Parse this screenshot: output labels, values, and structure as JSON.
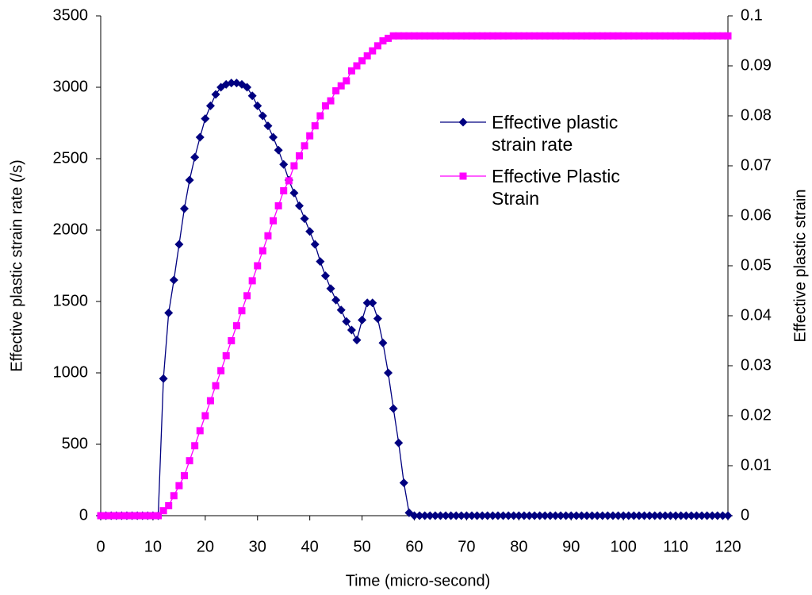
{
  "chart_data": {
    "type": "line",
    "x_label": "Time (micro-second)",
    "y_label": "Effective plastic strain rate (/s)",
    "y2_label": "Effective plastic strain",
    "x": [
      0,
      1,
      2,
      3,
      4,
      5,
      6,
      7,
      8,
      9,
      10,
      11,
      12,
      13,
      14,
      15,
      16,
      17,
      18,
      19,
      20,
      21,
      22,
      23,
      24,
      25,
      26,
      27,
      28,
      29,
      30,
      31,
      32,
      33,
      34,
      35,
      36,
      37,
      38,
      39,
      40,
      41,
      42,
      43,
      44,
      45,
      46,
      47,
      48,
      49,
      50,
      51,
      52,
      53,
      54,
      55,
      56,
      57,
      58,
      59,
      60,
      61,
      62,
      63,
      64,
      65,
      66,
      67,
      68,
      69,
      70,
      71,
      72,
      73,
      74,
      75,
      76,
      77,
      78,
      79,
      80,
      81,
      82,
      83,
      84,
      85,
      86,
      87,
      88,
      89,
      90,
      91,
      92,
      93,
      94,
      95,
      96,
      97,
      98,
      99,
      100,
      101,
      102,
      103,
      104,
      105,
      106,
      107,
      108,
      109,
      110,
      111,
      112,
      113,
      114,
      115,
      116,
      117,
      118,
      119,
      120
    ],
    "series": [
      {
        "name": "Effective plastic strain rate",
        "color": "#000080",
        "marker": "diamond",
        "values": [
          0,
          0,
          0,
          0,
          0,
          0,
          0,
          0,
          0,
          0,
          0,
          0,
          960,
          1420,
          1650,
          1900,
          2150,
          2350,
          2510,
          2650,
          2780,
          2870,
          2950,
          3000,
          3020,
          3030,
          3030,
          3020,
          3000,
          2940,
          2870,
          2800,
          2730,
          2650,
          2560,
          2460,
          2350,
          2260,
          2170,
          2080,
          1990,
          1900,
          1780,
          1680,
          1590,
          1510,
          1440,
          1360,
          1300,
          1230,
          1370,
          1490,
          1490,
          1380,
          1210,
          1000,
          750,
          510,
          230,
          20,
          0,
          0,
          0,
          0,
          0,
          0,
          0,
          0,
          0,
          0,
          0,
          0,
          0,
          0,
          0,
          0,
          0,
          0,
          0,
          0,
          0,
          0,
          0,
          0,
          0,
          0,
          0,
          0,
          0,
          0,
          0,
          0,
          0,
          0,
          0,
          0,
          0,
          0,
          0,
          0,
          0,
          0,
          0,
          0,
          0,
          0,
          0,
          0,
          0,
          0,
          0,
          0,
          0,
          0,
          0,
          0,
          0,
          0,
          0,
          0,
          0
        ]
      },
      {
        "name": "Effective Plastic Strain",
        "color": "#ff00ff",
        "marker": "square",
        "axis": "y2",
        "values": [
          0,
          0,
          0,
          0,
          0,
          0,
          0,
          0,
          0,
          0,
          0,
          0,
          0.001,
          0.002,
          0.004,
          0.006,
          0.008,
          0.011,
          0.014,
          0.017,
          0.02,
          0.023,
          0.026,
          0.029,
          0.032,
          0.035,
          0.038,
          0.041,
          0.044,
          0.047,
          0.05,
          0.053,
          0.056,
          0.059,
          0.062,
          0.065,
          0.067,
          0.07,
          0.072,
          0.074,
          0.076,
          0.078,
          0.08,
          0.082,
          0.083,
          0.085,
          0.086,
          0.087,
          0.089,
          0.09,
          0.091,
          0.092,
          0.093,
          0.094,
          0.095,
          0.0955,
          0.096,
          0.096,
          0.096,
          0.096,
          0.096,
          0.096,
          0.096,
          0.096,
          0.096,
          0.096,
          0.096,
          0.096,
          0.096,
          0.096,
          0.096,
          0.096,
          0.096,
          0.096,
          0.096,
          0.096,
          0.096,
          0.096,
          0.096,
          0.096,
          0.096,
          0.096,
          0.096,
          0.096,
          0.096,
          0.096,
          0.096,
          0.096,
          0.096,
          0.096,
          0.096,
          0.096,
          0.096,
          0.096,
          0.096,
          0.096,
          0.096,
          0.096,
          0.096,
          0.096,
          0.096,
          0.096,
          0.096,
          0.096,
          0.096,
          0.096,
          0.096,
          0.096,
          0.096,
          0.096,
          0.096,
          0.096,
          0.096,
          0.096,
          0.096,
          0.096,
          0.096,
          0.096,
          0.096,
          0.096,
          0.096
        ]
      }
    ],
    "xlim": [
      0,
      120
    ],
    "xticks": [
      0,
      10,
      20,
      30,
      40,
      50,
      60,
      70,
      80,
      90,
      100,
      110,
      120
    ],
    "ylim": [
      0,
      3500
    ],
    "yticks": [
      0,
      500,
      1000,
      1500,
      2000,
      2500,
      3000,
      3500
    ],
    "y2lim": [
      0,
      0.1
    ],
    "y2ticks": [
      0,
      0.01,
      0.02,
      0.03,
      0.04,
      0.05,
      0.06,
      0.07,
      0.08,
      0.09,
      0.1
    ],
    "grid": false
  }
}
